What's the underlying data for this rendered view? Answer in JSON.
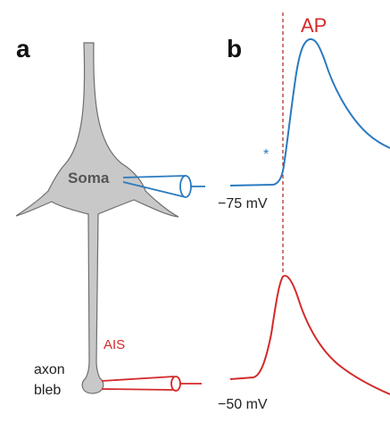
{
  "panels": {
    "a_label": "a",
    "b_label": "b"
  },
  "neuron": {
    "soma_label": "Soma",
    "ais_label": "AIS",
    "bleb_label_line1": "axon",
    "bleb_label_line2": "bleb"
  },
  "traces": {
    "ap_label": "AP",
    "asterisk": "*",
    "soma_vm_label": "−75 mV",
    "bleb_vm_label": "−50 mV"
  },
  "colors": {
    "soma_recording": "#2a7abf",
    "axon_recording": "#d42a2a",
    "neuron_fill": "#c8c8c8",
    "neuron_stroke": "#6e6e6e",
    "ap_marker": "#b02020"
  }
}
